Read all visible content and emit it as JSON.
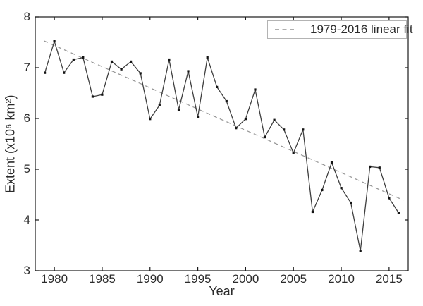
{
  "figure": {
    "background": "#ffffff"
  },
  "legend": {
    "label": "1979-2016 linear fit",
    "position": "upper-right",
    "border_color": "#b3b3b3"
  },
  "chart_data": {
    "type": "line",
    "title": "",
    "xlabel": "Year",
    "ylabel": "Extent (x10⁶ km²)",
    "xlim": [
      1978,
      2017
    ],
    "ylim": [
      3,
      8
    ],
    "x_ticks": [
      1980,
      1985,
      1990,
      1995,
      2000,
      2005,
      2010,
      2015
    ],
    "y_ticks": [
      3,
      4,
      5,
      6,
      7,
      8
    ],
    "grid": false,
    "tick_direction": "in",
    "legend_position": "upper-right",
    "colors": {
      "data_line": "#3f3f3f",
      "marker": "#141414",
      "fit_line": "#949494",
      "axis": "#1a1a1a",
      "text": "#2b2b2b"
    },
    "series": [
      {
        "name": "september-sea-ice-extent",
        "style": "solid",
        "marker": "square",
        "x": [
          1979,
          1980,
          1981,
          1982,
          1983,
          1984,
          1985,
          1986,
          1987,
          1988,
          1989,
          1990,
          1991,
          1992,
          1993,
          1994,
          1995,
          1996,
          1997,
          1998,
          1999,
          2000,
          2001,
          2002,
          2003,
          2004,
          2005,
          2006,
          2007,
          2008,
          2009,
          2010,
          2011,
          2012,
          2013,
          2014,
          2015,
          2016
        ],
        "values": [
          6.9,
          7.52,
          6.9,
          7.16,
          7.2,
          6.43,
          6.47,
          7.12,
          6.97,
          7.12,
          6.89,
          5.99,
          6.26,
          7.16,
          6.17,
          6.93,
          6.03,
          7.2,
          6.62,
          6.34,
          5.81,
          5.99,
          6.57,
          5.63,
          5.97,
          5.78,
          5.32,
          5.78,
          4.16,
          4.59,
          5.13,
          4.63,
          4.34,
          3.39,
          5.05,
          5.03,
          4.43,
          4.14
        ]
      },
      {
        "name": "linear-fit",
        "label": "1979-2016 linear fit",
        "style": "dashed",
        "marker": "none",
        "x": [
          1978.9,
          2016.5
        ],
        "values": [
          7.53,
          4.39
        ]
      }
    ]
  }
}
